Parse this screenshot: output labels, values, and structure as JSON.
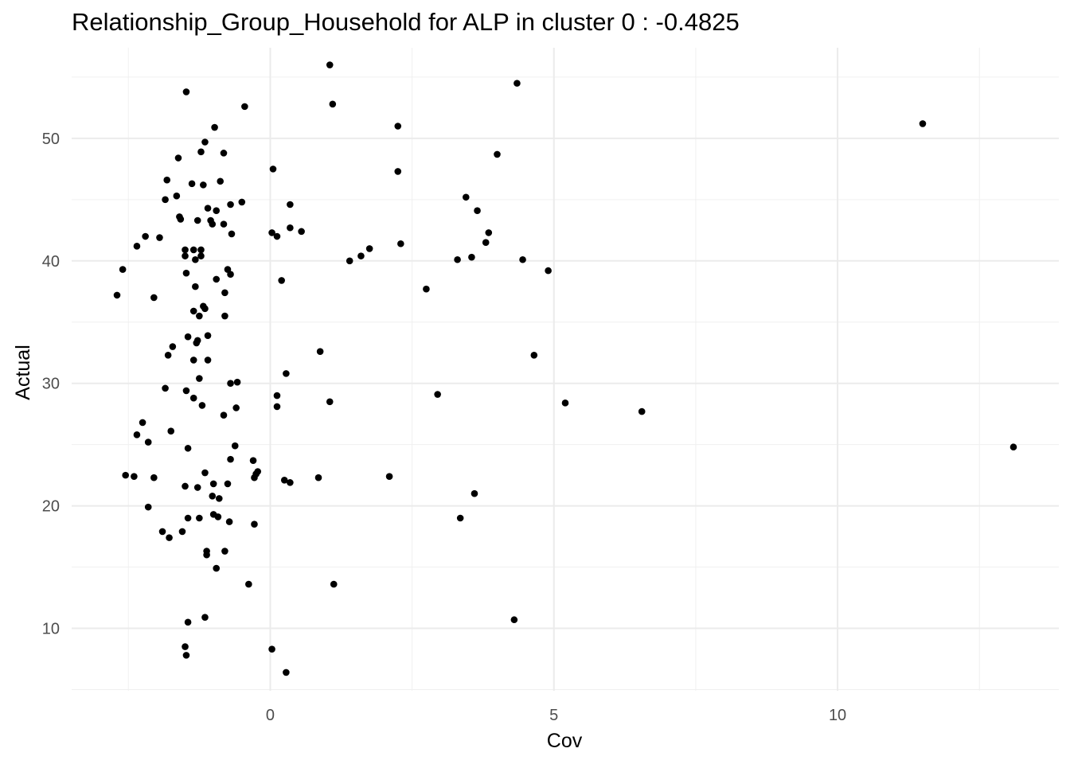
{
  "chart_data": {
    "type": "scatter",
    "title": "Relationship_Group_Household for ALP in cluster 0 : -0.4825",
    "xlabel": "Cov",
    "ylabel": "Actual",
    "xlim": [
      -3.5,
      13.9
    ],
    "ylim": [
      4.9,
      57.4
    ],
    "x_ticks": [
      0,
      5,
      10
    ],
    "y_ticks": [
      10,
      20,
      30,
      40,
      50
    ],
    "grid": true,
    "marker_color": "#000000",
    "points": [
      {
        "x": -2.7,
        "y": 37.2
      },
      {
        "x": -2.6,
        "y": 39.3
      },
      {
        "x": -2.55,
        "y": 22.5
      },
      {
        "x": -2.4,
        "y": 22.4
      },
      {
        "x": -2.35,
        "y": 41.2
      },
      {
        "x": -2.35,
        "y": 25.8
      },
      {
        "x": -2.25,
        "y": 26.8
      },
      {
        "x": -2.2,
        "y": 42.0
      },
      {
        "x": -2.15,
        "y": 25.2
      },
      {
        "x": -2.15,
        "y": 19.9
      },
      {
        "x": -2.05,
        "y": 37.0
      },
      {
        "x": -2.05,
        "y": 22.3
      },
      {
        "x": -1.95,
        "y": 41.9
      },
      {
        "x": -1.9,
        "y": 17.9
      },
      {
        "x": -1.85,
        "y": 45.0
      },
      {
        "x": -1.85,
        "y": 29.6
      },
      {
        "x": -1.82,
        "y": 46.6
      },
      {
        "x": -1.8,
        "y": 32.3
      },
      {
        "x": -1.78,
        "y": 17.4
      },
      {
        "x": -1.75,
        "y": 26.1
      },
      {
        "x": -1.72,
        "y": 33.0
      },
      {
        "x": -1.65,
        "y": 45.3
      },
      {
        "x": -1.62,
        "y": 48.4
      },
      {
        "x": -1.6,
        "y": 43.6
      },
      {
        "x": -1.58,
        "y": 43.4
      },
      {
        "x": -1.55,
        "y": 17.9
      },
      {
        "x": -1.5,
        "y": 40.9
      },
      {
        "x": -1.5,
        "y": 40.4
      },
      {
        "x": -1.5,
        "y": 21.6
      },
      {
        "x": -1.5,
        "y": 8.5
      },
      {
        "x": -1.48,
        "y": 53.8
      },
      {
        "x": -1.48,
        "y": 39.0
      },
      {
        "x": -1.48,
        "y": 29.4
      },
      {
        "x": -1.48,
        "y": 7.8
      },
      {
        "x": -1.45,
        "y": 33.8
      },
      {
        "x": -1.45,
        "y": 24.7
      },
      {
        "x": -1.45,
        "y": 19.0
      },
      {
        "x": -1.45,
        "y": 10.5
      },
      {
        "x": -1.38,
        "y": 46.3
      },
      {
        "x": -1.35,
        "y": 40.9
      },
      {
        "x": -1.35,
        "y": 35.9
      },
      {
        "x": -1.35,
        "y": 31.9
      },
      {
        "x": -1.35,
        "y": 28.8
      },
      {
        "x": -1.32,
        "y": 40.1
      },
      {
        "x": -1.32,
        "y": 37.9
      },
      {
        "x": -1.3,
        "y": 33.3
      },
      {
        "x": -1.28,
        "y": 43.3
      },
      {
        "x": -1.28,
        "y": 33.5
      },
      {
        "x": -1.28,
        "y": 21.5
      },
      {
        "x": -1.25,
        "y": 35.5
      },
      {
        "x": -1.25,
        "y": 30.4
      },
      {
        "x": -1.25,
        "y": 19.0
      },
      {
        "x": -1.22,
        "y": 48.9
      },
      {
        "x": -1.22,
        "y": 40.9
      },
      {
        "x": -1.22,
        "y": 40.4
      },
      {
        "x": -1.2,
        "y": 28.2
      },
      {
        "x": -1.18,
        "y": 46.2
      },
      {
        "x": -1.18,
        "y": 36.3
      },
      {
        "x": -1.15,
        "y": 49.7
      },
      {
        "x": -1.15,
        "y": 36.1
      },
      {
        "x": -1.15,
        "y": 22.7
      },
      {
        "x": -1.15,
        "y": 10.9
      },
      {
        "x": -1.12,
        "y": 16.3
      },
      {
        "x": -1.12,
        "y": 16.0
      },
      {
        "x": -1.1,
        "y": 44.3
      },
      {
        "x": -1.1,
        "y": 33.9
      },
      {
        "x": -1.1,
        "y": 31.9
      },
      {
        "x": -1.05,
        "y": 43.3
      },
      {
        "x": -1.02,
        "y": 43.0
      },
      {
        "x": -1.02,
        "y": 20.8
      },
      {
        "x": -1.0,
        "y": 21.8
      },
      {
        "x": -1.0,
        "y": 19.3
      },
      {
        "x": -0.98,
        "y": 50.9
      },
      {
        "x": -0.95,
        "y": 44.1
      },
      {
        "x": -0.95,
        "y": 38.5
      },
      {
        "x": -0.95,
        "y": 14.9
      },
      {
        "x": -0.92,
        "y": 19.1
      },
      {
        "x": -0.9,
        "y": 20.6
      },
      {
        "x": -0.88,
        "y": 46.5
      },
      {
        "x": -0.82,
        "y": 48.8
      },
      {
        "x": -0.82,
        "y": 43.0
      },
      {
        "x": -0.82,
        "y": 27.4
      },
      {
        "x": -0.8,
        "y": 37.4
      },
      {
        "x": -0.8,
        "y": 35.5
      },
      {
        "x": -0.8,
        "y": 16.3
      },
      {
        "x": -0.75,
        "y": 39.3
      },
      {
        "x": -0.75,
        "y": 21.8
      },
      {
        "x": -0.72,
        "y": 18.7
      },
      {
        "x": -0.7,
        "y": 38.9
      },
      {
        "x": -0.7,
        "y": 44.6
      },
      {
        "x": -0.7,
        "y": 30.0
      },
      {
        "x": -0.7,
        "y": 23.8
      },
      {
        "x": -0.68,
        "y": 42.2
      },
      {
        "x": -0.62,
        "y": 24.9
      },
      {
        "x": -0.6,
        "y": 28.0
      },
      {
        "x": -0.58,
        "y": 30.1
      },
      {
        "x": -0.5,
        "y": 44.8
      },
      {
        "x": -0.45,
        "y": 52.6
      },
      {
        "x": -0.38,
        "y": 13.6
      },
      {
        "x": -0.3,
        "y": 23.7
      },
      {
        "x": -0.28,
        "y": 18.5
      },
      {
        "x": -0.28,
        "y": 22.3
      },
      {
        "x": -0.25,
        "y": 22.6
      },
      {
        "x": -0.22,
        "y": 22.8
      },
      {
        "x": 0.03,
        "y": 8.3
      },
      {
        "x": 0.03,
        "y": 42.3
      },
      {
        "x": 0.05,
        "y": 47.5
      },
      {
        "x": 0.12,
        "y": 42.0
      },
      {
        "x": 0.12,
        "y": 29.0
      },
      {
        "x": 0.12,
        "y": 28.1
      },
      {
        "x": 0.2,
        "y": 38.4
      },
      {
        "x": 0.25,
        "y": 22.1
      },
      {
        "x": 0.28,
        "y": 30.8
      },
      {
        "x": 0.28,
        "y": 6.4
      },
      {
        "x": 0.35,
        "y": 44.6
      },
      {
        "x": 0.35,
        "y": 42.7
      },
      {
        "x": 0.35,
        "y": 21.9
      },
      {
        "x": 0.55,
        "y": 42.4
      },
      {
        "x": 0.85,
        "y": 22.3
      },
      {
        "x": 0.88,
        "y": 32.6
      },
      {
        "x": 1.05,
        "y": 56.0
      },
      {
        "x": 1.05,
        "y": 28.5
      },
      {
        "x": 1.1,
        "y": 52.8
      },
      {
        "x": 1.12,
        "y": 13.6
      },
      {
        "x": 1.4,
        "y": 40.0
      },
      {
        "x": 1.6,
        "y": 40.4
      },
      {
        "x": 1.75,
        "y": 41.0
      },
      {
        "x": 2.1,
        "y": 22.4
      },
      {
        "x": 2.25,
        "y": 51.0
      },
      {
        "x": 2.25,
        "y": 47.3
      },
      {
        "x": 2.3,
        "y": 41.4
      },
      {
        "x": 2.75,
        "y": 37.7
      },
      {
        "x": 2.95,
        "y": 29.1
      },
      {
        "x": 3.3,
        "y": 40.1
      },
      {
        "x": 3.35,
        "y": 19.0
      },
      {
        "x": 3.45,
        "y": 45.2
      },
      {
        "x": 3.55,
        "y": 40.3
      },
      {
        "x": 3.6,
        "y": 21.0
      },
      {
        "x": 3.65,
        "y": 44.1
      },
      {
        "x": 3.8,
        "y": 41.5
      },
      {
        "x": 3.85,
        "y": 42.3
      },
      {
        "x": 4.0,
        "y": 48.7
      },
      {
        "x": 4.3,
        "y": 10.7
      },
      {
        "x": 4.35,
        "y": 54.5
      },
      {
        "x": 4.45,
        "y": 40.1
      },
      {
        "x": 4.65,
        "y": 32.3
      },
      {
        "x": 4.9,
        "y": 39.2
      },
      {
        "x": 5.2,
        "y": 28.4
      },
      {
        "x": 6.55,
        "y": 27.7
      },
      {
        "x": 11.5,
        "y": 51.2
      },
      {
        "x": 13.1,
        "y": 24.8
      }
    ]
  }
}
